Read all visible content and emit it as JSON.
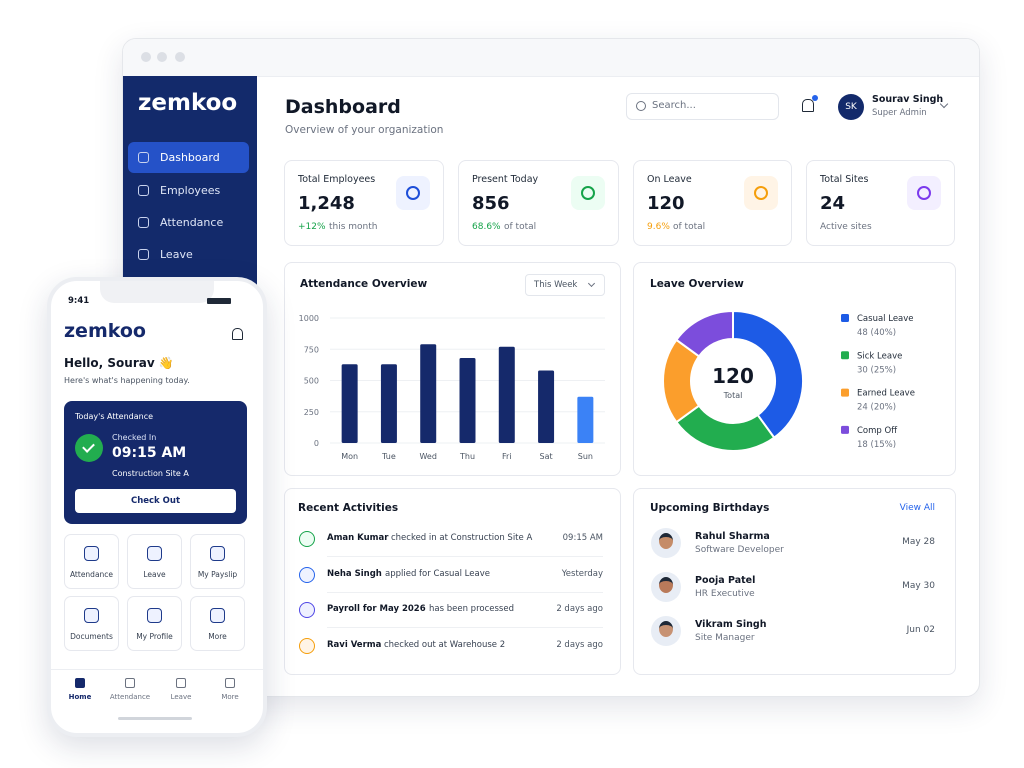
{
  "sidebar": {
    "logo": "zemkoo",
    "nav": [
      "Dashboard",
      "Employees",
      "Attendance",
      "Leave"
    ]
  },
  "header": {
    "title": "Dashboard",
    "subtitle": "Overview of your organization",
    "search": "Search...",
    "user": {
      "initials": "SK",
      "name": "Sourav Singh",
      "role": "Super Admin"
    }
  },
  "stats": [
    {
      "label": "Total Employees",
      "value": "1,248",
      "delta": "+12%",
      "note": "this month"
    },
    {
      "label": "Present Today",
      "value": "856",
      "delta": "68.6%",
      "note": "of total"
    },
    {
      "label": "On Leave",
      "value": "120",
      "delta": "9.6%",
      "note": "of total"
    },
    {
      "label": "Total Sites",
      "value": "24",
      "note": "Active sites"
    }
  ],
  "chart_data": [
    {
      "type": "bar",
      "title": "Attendance Overview",
      "filter": "This Week",
      "categories": [
        "Mon",
        "Tue",
        "Wed",
        "Thu",
        "Fri",
        "Sat",
        "Sun"
      ],
      "values": [
        630,
        630,
        790,
        680,
        770,
        580,
        370
      ],
      "colors": [
        "#15296b",
        "#15296b",
        "#15296b",
        "#15296b",
        "#15296b",
        "#15296b",
        "#3b82f6"
      ],
      "ylim": [
        0,
        1000
      ],
      "yticks": [
        0,
        250,
        500,
        750,
        1000
      ],
      "grid": true
    },
    {
      "type": "pie",
      "title": "Leave Overview",
      "categories": [
        "Casual Leave",
        "Sick Leave",
        "Earned Leave",
        "Comp Off"
      ],
      "values": [
        48,
        30,
        24,
        18
      ],
      "value_labels": [
        "48 (40%)",
        "30 (25%)",
        "24 (20%)",
        "18 (15%)"
      ],
      "colors": [
        "#1d5be6",
        "#22ad4f",
        "#fb9e2c",
        "#7c4ddc"
      ],
      "center_value": 120,
      "center_label": "Total"
    }
  ],
  "activities": {
    "title": "Recent Activities",
    "items": [
      {
        "name": "Aman Kumar",
        "text": "checked in at Construction Site A",
        "time": "09:15 AM"
      },
      {
        "name": "Neha Singh",
        "text": "applied for Casual Leave",
        "time": "Yesterday"
      },
      {
        "name": "Payroll for May 2026",
        "text": "has been processed",
        "time": "2 days ago"
      },
      {
        "name": "Ravi Verma",
        "text": "checked out at Warehouse 2",
        "time": "2 days ago"
      }
    ]
  },
  "birthdays": {
    "title": "Upcoming Birthdays",
    "link": "View All",
    "items": [
      {
        "name": "Rahul Sharma",
        "role": "Software Developer",
        "date": "May 28"
      },
      {
        "name": "Pooja Patel",
        "role": "HR Executive",
        "date": "May 30"
      },
      {
        "name": "Vikram Singh",
        "role": "Site Manager",
        "date": "Jun 02"
      }
    ]
  },
  "phone": {
    "time": "9:41",
    "logo": "zemkoo",
    "greeting": "Hello, Sourav 👋",
    "subtext": "Here's what's happening today.",
    "attendance": {
      "title": "Today's Attendance",
      "status": "Checked In",
      "time": "09:15 AM",
      "site": "Construction Site A",
      "button": "Check Out"
    },
    "tiles": [
      "Attendance",
      "Leave",
      "My Payslip",
      "Documents",
      "My Profile",
      "More"
    ],
    "tabs": [
      "Home",
      "Attendance",
      "Leave",
      "More"
    ]
  }
}
